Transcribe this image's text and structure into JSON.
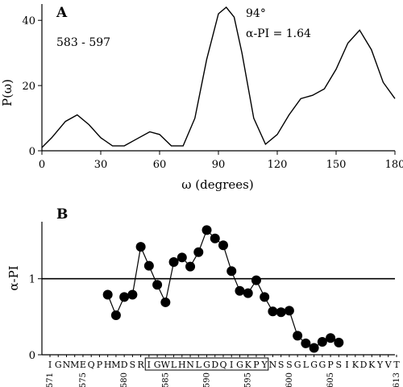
{
  "chart_data": [
    {
      "type": "line",
      "panel_label": "A",
      "range_label": "583 - 597",
      "peak_label": "94°",
      "api_label": "α-PI = 1.64",
      "xlabel": "ω (degrees)",
      "ylabel": "P(ω)",
      "xlim": [
        0,
        180
      ],
      "ylim": [
        0,
        45
      ],
      "x_ticks": [
        0,
        30,
        60,
        90,
        120,
        150,
        180
      ],
      "y_ticks": [
        0,
        20,
        40
      ],
      "x": [
        0,
        5,
        12,
        18,
        24,
        30,
        36,
        42,
        48,
        55,
        60,
        66,
        72,
        78,
        84,
        90,
        94,
        98,
        102,
        108,
        114,
        120,
        126,
        132,
        138,
        144,
        150,
        156,
        162,
        168,
        174,
        180
      ],
      "values": [
        1,
        4,
        9,
        11,
        8,
        4,
        1.5,
        1.5,
        3.5,
        5.8,
        5,
        1.5,
        1.5,
        10,
        28,
        42,
        44,
        41,
        30,
        10,
        2,
        5,
        11,
        16,
        17,
        19,
        25,
        33,
        37,
        31,
        21,
        16
      ]
    },
    {
      "type": "scatter",
      "panel_label": "B",
      "ylabel": "α-PI",
      "ylim": [
        0,
        1.75
      ],
      "y_ticks": [
        0,
        1
      ],
      "reference_line": 1,
      "sequence": [
        "I",
        "G",
        "N",
        "M",
        "E",
        "Q",
        "P",
        "H",
        "M",
        "D",
        "S",
        "R",
        "I",
        "G",
        "W",
        "L",
        "H",
        "N",
        "L",
        "G",
        "D",
        "Q",
        "I",
        "G",
        "K",
        "P",
        "Y",
        "N",
        "S",
        "S",
        "G",
        "L",
        "G",
        "G",
        "P",
        "S",
        "I",
        "K",
        "D",
        "K",
        "Y",
        "V",
        "T"
      ],
      "residue_tick_labels": [
        "571",
        "575",
        "580",
        "585",
        "590",
        "595",
        "600",
        "605",
        "613"
      ],
      "boxed_sequence": "IGWLHNLGDQIGKPY",
      "points_x": [
        578,
        579,
        580,
        581,
        582,
        583,
        584,
        585,
        586,
        587,
        588,
        589,
        590,
        591,
        592,
        593,
        594,
        595,
        596,
        597,
        598,
        599,
        600,
        601,
        602,
        603,
        604,
        605,
        606
      ],
      "points_y": [
        0.79,
        0.52,
        0.76,
        0.79,
        1.42,
        1.17,
        0.92,
        0.69,
        1.22,
        1.28,
        1.16,
        1.35,
        1.64,
        1.53,
        1.44,
        1.1,
        0.84,
        0.81,
        0.98,
        0.76,
        0.57,
        0.56,
        0.58,
        0.25,
        0.15,
        0.09,
        0.17,
        0.22,
        0.16
      ]
    }
  ]
}
